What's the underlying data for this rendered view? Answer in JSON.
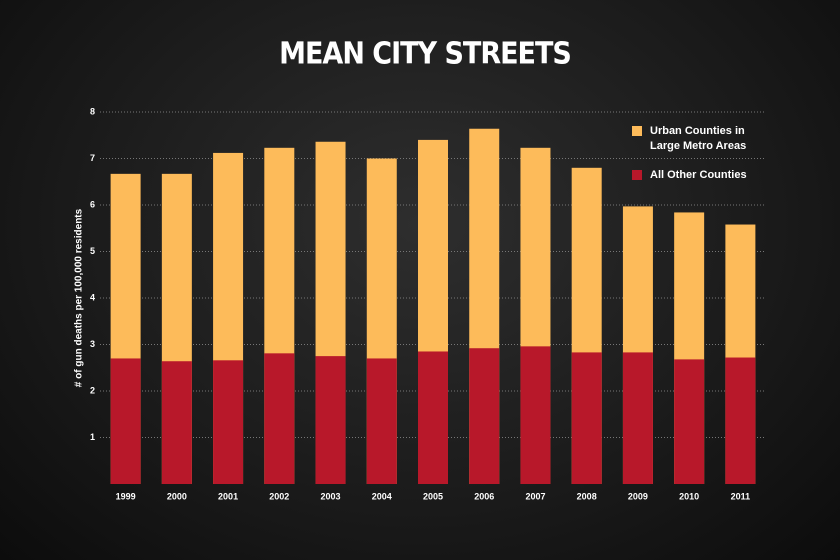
{
  "chart_data": {
    "type": "bar",
    "title": "MEAN CITY STREETS",
    "y_label": "# of gun deaths per 100,000 residents",
    "categories": [
      "1999",
      "2000",
      "2001",
      "2002",
      "2003",
      "2004",
      "2005",
      "2006",
      "2007",
      "2008",
      "2009",
      "2010",
      "2011"
    ],
    "series": [
      {
        "name": "Urban Counties in Large Metro Areas",
        "color": "#fdbb5a",
        "values": [
          6.67,
          6.67,
          7.12,
          7.23,
          7.36,
          7.0,
          7.4,
          7.64,
          7.23,
          6.8,
          5.97,
          5.84,
          5.58
        ]
      },
      {
        "name": "All Other Counties",
        "color": "#b8182a",
        "values": [
          2.7,
          2.64,
          2.66,
          2.81,
          2.75,
          2.7,
          2.85,
          2.92,
          2.96,
          2.83,
          2.83,
          2.68,
          2.72
        ]
      }
    ],
    "ylim": [
      0,
      8
    ],
    "yticks": [
      1,
      2,
      3,
      4,
      5,
      6,
      7,
      8
    ],
    "grid": true,
    "legend": "top-right"
  }
}
